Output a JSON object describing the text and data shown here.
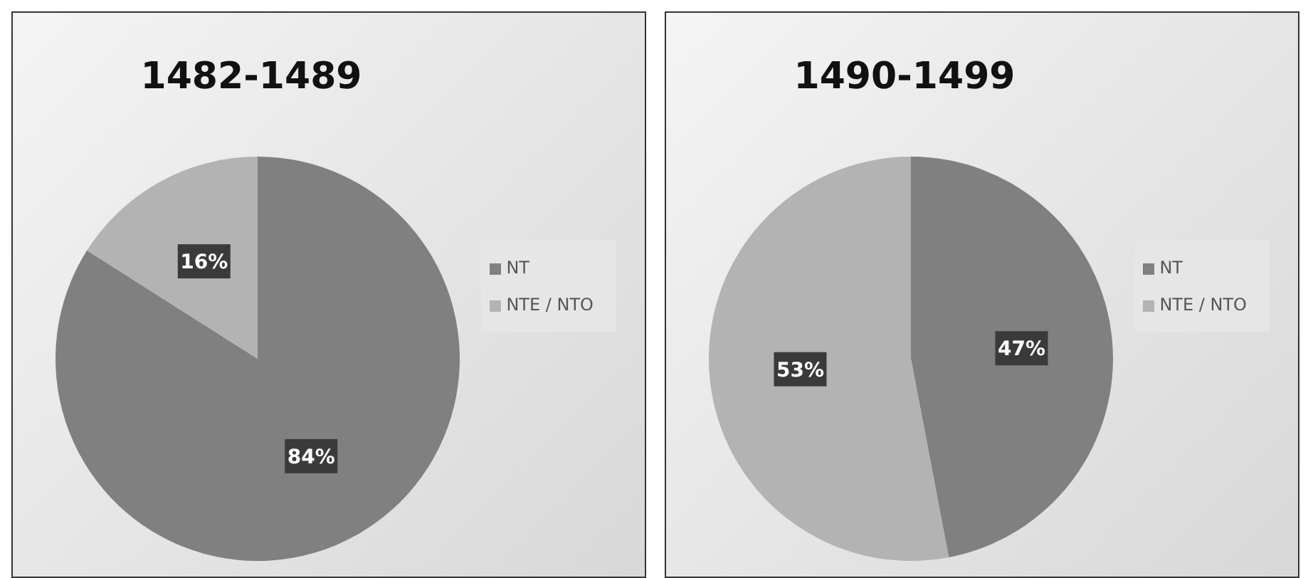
{
  "chart_data": [
    {
      "type": "pie",
      "title": "1482-1489",
      "categories": [
        "NT",
        "NTE / NTO"
      ],
      "values": [
        84,
        16
      ],
      "value_labels": [
        "84%",
        "16%"
      ],
      "colors": [
        "#808080",
        "#b3b3b3"
      ],
      "legend": "right"
    },
    {
      "type": "pie",
      "title": "1490-1499",
      "categories": [
        "NT",
        "NTE / NTO"
      ],
      "values": [
        47,
        53
      ],
      "value_labels": [
        "47%",
        "53%"
      ],
      "colors": [
        "#808080",
        "#b3b3b3"
      ],
      "legend": "right"
    }
  ]
}
